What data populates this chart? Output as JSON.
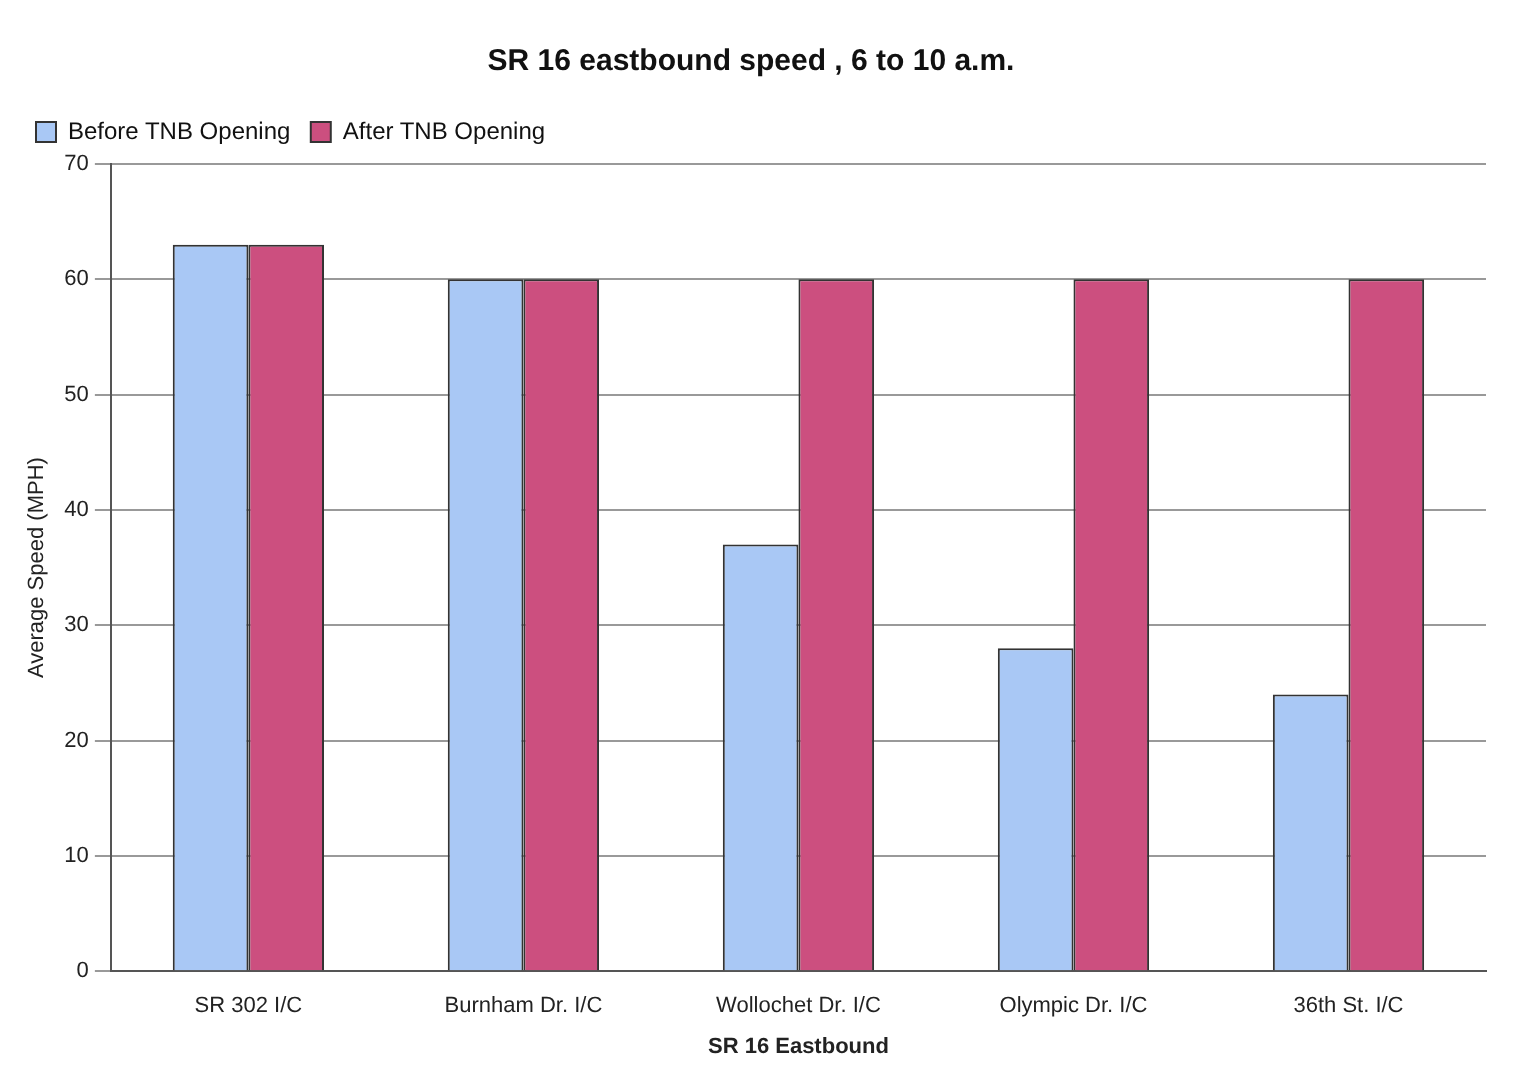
{
  "chart_data": {
    "type": "bar",
    "title": "SR 16 eastbound speed , 6 to 10 a.m.",
    "xlabel": "SR 16 Eastbound",
    "ylabel": "Average Speed (MPH)",
    "categories": [
      "SR 302 I/C",
      "Burnham Dr. I/C",
      "Wollochet Dr. I/C",
      "Olympic Dr. I/C",
      "36th St. I/C"
    ],
    "series": [
      {
        "name": "Before TNB Opening",
        "color": "#a9c8f5",
        "values": [
          63,
          60,
          37,
          28,
          24
        ]
      },
      {
        "name": "After TNB Opening",
        "color": "#cc4f7f",
        "values": [
          63,
          60,
          60,
          60,
          60
        ]
      }
    ],
    "ylim": [
      0,
      70
    ],
    "yticks": [
      0,
      10,
      20,
      30,
      40,
      50,
      60,
      70
    ],
    "grid": "y",
    "legend": "top left"
  }
}
